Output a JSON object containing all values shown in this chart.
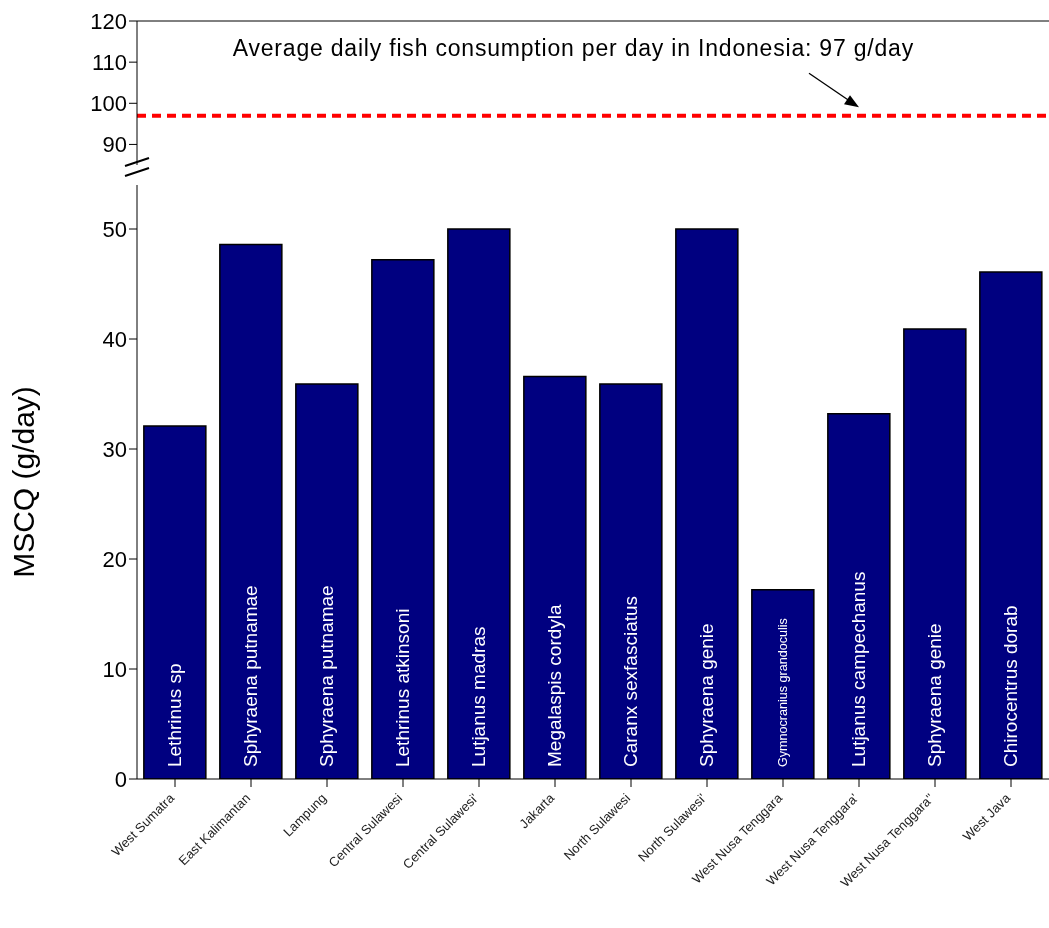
{
  "chart_data": [
    {
      "type": "bar",
      "categories": [
        "West Sumatra",
        "East Kalimantan",
        "Lampung",
        "Central Sulawesi",
        "Central Sulawesi'",
        "Jakarta",
        "North Sulawesi",
        "North Sulawesi'",
        "West Nusa Tenggara",
        "West Nusa Tenggara'",
        "West Nusa Tenggara''",
        "West Java"
      ],
      "values": [
        null,
        null,
        null,
        null,
        null,
        null,
        null,
        null,
        null,
        null,
        null,
        null
      ],
      "ylim": [
        85,
        120
      ],
      "yticks": [
        90,
        100,
        110,
        120
      ],
      "tick_labels": "y",
      "ref_lines": [
        {
          "axis": "y",
          "value": 97,
          "color": "#ff0000",
          "line_style": "dashed"
        }
      ],
      "annotations": [
        {
          "text": "Average daily fish consumption per day in Indonesia: 97 g/day",
          "x": "West Nusa Tenggara'",
          "y": 97
        }
      ]
    },
    {
      "type": "bar",
      "categories": [
        "West Sumatra",
        "East Kalimantan",
        "Lampung",
        "Central Sulawesi",
        "Central Sulawesi'",
        "Jakarta",
        "North Sulawesi",
        "North Sulawesi'",
        "West Nusa Tenggara",
        "West Nusa Tenggara'",
        "West Nusa Tenggara''",
        "West Java"
      ],
      "values": [
        32.1,
        48.6,
        35.9,
        47.2,
        50,
        36.6,
        35.9,
        50,
        17.2,
        33.2,
        40.9,
        46.1
      ],
      "color": "#000080",
      "value_labels": [
        "Lethrinus sp",
        "Sphyraena putnamae",
        "Sphyraena putnamae",
        "Lethrinus atkinsoni",
        "Lutjanus madras",
        "Megalaspis cordyla",
        "Caranx sexfasciatus",
        "Sphyraena genie",
        "Gymnocranius grandoculis",
        "Lutjanus campechanus",
        "Sphyraena genie",
        "Chirocentrus dorab"
      ],
      "ylim": [
        0,
        54
      ],
      "yticks": [
        0,
        10,
        20,
        30,
        40,
        50
      ],
      "ylabel": "MSCQ (g/day)"
    }
  ]
}
